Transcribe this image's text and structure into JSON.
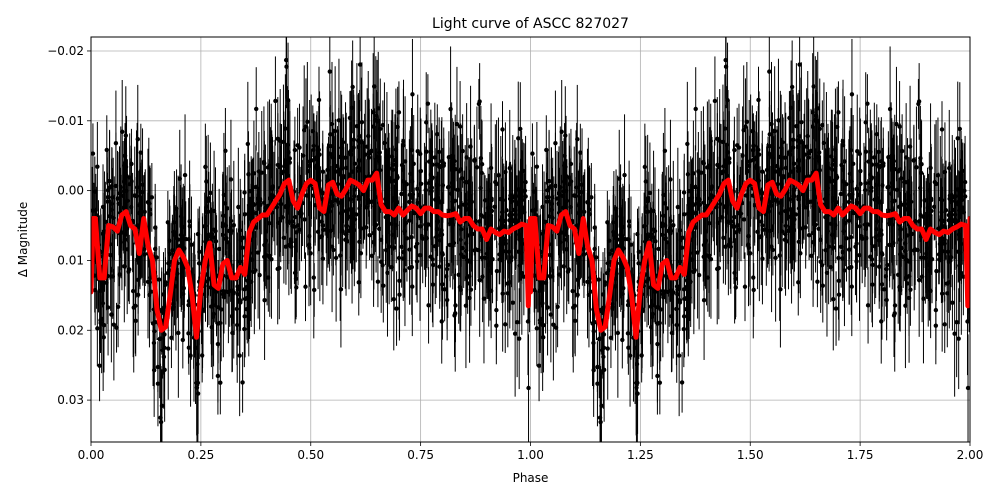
{
  "chart_data": {
    "type": "scatter",
    "title": "Light curve of ASCC 827027",
    "xlabel": "Phase",
    "ylabel": "Δ Magnitude",
    "xlim": [
      0.0,
      2.0
    ],
    "ylim": [
      0.036,
      -0.022
    ],
    "y_inverted": true,
    "grid": true,
    "x_ticks": [
      0.0,
      0.25,
      0.5,
      0.75,
      1.0,
      1.25,
      1.5,
      1.75,
      2.0
    ],
    "x_tick_labels": [
      "0.00",
      "0.25",
      "0.50",
      "0.75",
      "1.00",
      "1.25",
      "1.50",
      "1.75",
      "2.00"
    ],
    "y_ticks": [
      -0.02,
      -0.01,
      0.0,
      0.01,
      0.02,
      0.03
    ],
    "y_tick_labels": [
      "−0.02",
      "−0.01",
      "0.00",
      "0.01",
      "0.02",
      "0.03"
    ],
    "colors": {
      "points": "#000000",
      "binned": "#ff0000",
      "grid": "#b0b0b0"
    },
    "series": [
      {
        "type": "errorbar-scatter",
        "color": "#000000",
        "note_period": "phase 1.0–2.0 repeats phase 0.0–1.0"
      },
      {
        "type": "line",
        "color": "#ff0000",
        "x": [
          0.0,
          0.005,
          0.01,
          0.02,
          0.03,
          0.04,
          0.05,
          0.06,
          0.07,
          0.08,
          0.09,
          0.1,
          0.11,
          0.12,
          0.13,
          0.14,
          0.15,
          0.16,
          0.17,
          0.18,
          0.19,
          0.2,
          0.21,
          0.22,
          0.23,
          0.24,
          0.25,
          0.26,
          0.27,
          0.28,
          0.29,
          0.3,
          0.31,
          0.32,
          0.33,
          0.34,
          0.35,
          0.36,
          0.37,
          0.38,
          0.39,
          0.4,
          0.41,
          0.42,
          0.43,
          0.44,
          0.45,
          0.46,
          0.47,
          0.48,
          0.49,
          0.5,
          0.51,
          0.52,
          0.53,
          0.54,
          0.55,
          0.56,
          0.57,
          0.58,
          0.59,
          0.6,
          0.61,
          0.62,
          0.63,
          0.64,
          0.65,
          0.66,
          0.67,
          0.68,
          0.69,
          0.7,
          0.71,
          0.72,
          0.73,
          0.74,
          0.75,
          0.76,
          0.77,
          0.78,
          0.79,
          0.8,
          0.81,
          0.82,
          0.83,
          0.84,
          0.85,
          0.86,
          0.87,
          0.88,
          0.89,
          0.9,
          0.91,
          0.92,
          0.93,
          0.94,
          0.95,
          0.96,
          0.97,
          0.98,
          0.99,
          0.995,
          1.0
        ],
        "y": [
          0.0145,
          0.004,
          0.004,
          0.0125,
          0.0125,
          0.005,
          0.0052,
          0.0058,
          0.0035,
          0.003,
          0.005,
          0.0055,
          0.009,
          0.004,
          0.008,
          0.01,
          0.017,
          0.02,
          0.0195,
          0.015,
          0.01,
          0.0085,
          0.0095,
          0.011,
          0.015,
          0.021,
          0.014,
          0.01,
          0.0075,
          0.0135,
          0.014,
          0.0105,
          0.01,
          0.0125,
          0.0125,
          0.011,
          0.012,
          0.006,
          0.0045,
          0.004,
          0.0035,
          0.0035,
          0.0025,
          0.0015,
          0.0005,
          -0.001,
          -0.0015,
          0.0015,
          0.0025,
          0.0005,
          -0.001,
          -0.0015,
          -0.001,
          0.0025,
          0.003,
          -0.0008,
          -0.0012,
          0.0005,
          0.0008,
          -0.0002,
          -0.0015,
          -0.0012,
          -0.0008,
          0.0,
          -0.0015,
          -0.0015,
          -0.0025,
          0.002,
          0.003,
          0.003,
          0.0035,
          0.0025,
          0.0035,
          0.0028,
          0.0022,
          0.0025,
          0.0033,
          0.0025,
          0.0025,
          0.003,
          0.003,
          0.0035,
          0.0036,
          0.0035,
          0.0033,
          0.0045,
          0.004,
          0.004,
          0.005,
          0.0055,
          0.0055,
          0.007,
          0.0055,
          0.006,
          0.0063,
          0.0058,
          0.006,
          0.0055,
          0.0052,
          0.0048,
          0.005,
          0.0165,
          0.004
        ]
      }
    ]
  }
}
